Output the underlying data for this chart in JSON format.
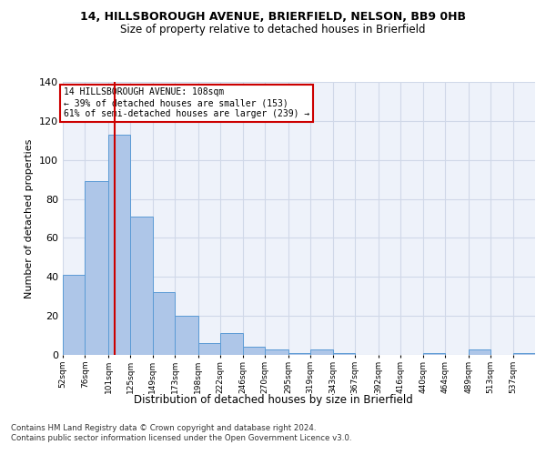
{
  "title_line1": "14, HILLSBOROUGH AVENUE, BRIERFIELD, NELSON, BB9 0HB",
  "title_line2": "Size of property relative to detached houses in Brierfield",
  "xlabel": "Distribution of detached houses by size in Brierfield",
  "ylabel": "Number of detached properties",
  "categories": [
    "52sqm",
    "76sqm",
    "101sqm",
    "125sqm",
    "149sqm",
    "173sqm",
    "198sqm",
    "222sqm",
    "246sqm",
    "270sqm",
    "295sqm",
    "319sqm",
    "343sqm",
    "367sqm",
    "392sqm",
    "416sqm",
    "440sqm",
    "464sqm",
    "489sqm",
    "513sqm",
    "537sqm"
  ],
  "bar_color": "#aec6e8",
  "bar_edge_color": "#5b9bd5",
  "vline_x": 108,
  "vline_color": "#cc0000",
  "annotation_text": "14 HILLSBOROUGH AVENUE: 108sqm\n← 39% of detached houses are smaller (153)\n61% of semi-detached houses are larger (239) →",
  "annotation_box_color": "#ffffff",
  "annotation_box_edge": "#cc0000",
  "ylim": [
    0,
    140
  ],
  "yticks": [
    0,
    20,
    40,
    60,
    80,
    100,
    120,
    140
  ],
  "grid_color": "#d0d8e8",
  "background_color": "#eef2fa",
  "footer_line1": "Contains HM Land Registry data © Crown copyright and database right 2024.",
  "footer_line2": "Contains public sector information licensed under the Open Government Licence v3.0.",
  "bin_edges": [
    52,
    76,
    101,
    125,
    149,
    173,
    198,
    222,
    246,
    270,
    295,
    319,
    343,
    367,
    392,
    416,
    440,
    464,
    489,
    513,
    537,
    561
  ],
  "counts": [
    41,
    89,
    113,
    71,
    32,
    20,
    6,
    11,
    4,
    3,
    1,
    3,
    1,
    0,
    0,
    0,
    1,
    0,
    3,
    0,
    1
  ]
}
